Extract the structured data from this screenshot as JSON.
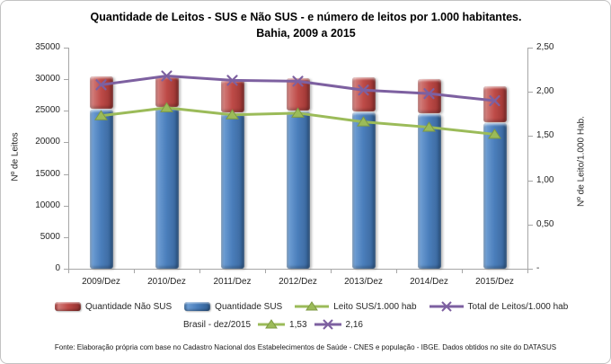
{
  "title": "Quantidade de Leitos - SUS e Não SUS - e número de leitos por 1.000 habitantes. Bahia, 2009 a 2015",
  "source_note": "Fonte: Elaboração própria com base no Cadastro Nacional dos Estabelecimentos de Saúde - CNES e população - IBGE. Dados obtidos no site do DATASUS",
  "colors": {
    "sus_bar": "#4A7EBB",
    "nao_sus_bar": "#BE4B48",
    "leito_sus_line": "#9BBB59",
    "total_leitos_line": "#7D60A0",
    "axis": "#A6A6A6",
    "text": "#262626"
  },
  "left_axis": {
    "title": "Nº de Leitos",
    "min": 0,
    "max": 35000,
    "step": 5000,
    "tick_labels": [
      "35000",
      "30000",
      "25000",
      "20000",
      "15000",
      "10000",
      "5000",
      "0"
    ]
  },
  "right_axis": {
    "title": "Nº de Leito/1.000 Hab.",
    "min": 0,
    "max": 2.5,
    "step": 0.5,
    "tick_labels": [
      "2,50",
      "2,00",
      "1,50",
      "1,00",
      "0,50",
      "-"
    ]
  },
  "legend": {
    "items": [
      {
        "label": "Quantidade Não SUS",
        "marker": "bar",
        "color": "#BE4B48"
      },
      {
        "label": "Quantidade SUS",
        "marker": "bar",
        "color": "#4A7EBB"
      },
      {
        "label": "Leito SUS/1.000 hab",
        "marker": "line-triangle",
        "color": "#9BBB59"
      },
      {
        "label": "Total de Leitos/1.000 hab",
        "marker": "line-x",
        "color": "#7D60A0"
      }
    ],
    "brasil": {
      "label": "Brasil - dez/2015",
      "sus_value": "1,53",
      "total_value": "2,16"
    }
  },
  "chart_data": {
    "type": "bar",
    "subtype": "stacked-bar-with-lines-combo",
    "categories": [
      "2009/Dez",
      "2010/Dez",
      "2011/Dez",
      "2012/Dez",
      "2013/Dez",
      "2014/Dez",
      "2015/Dez"
    ],
    "series": [
      {
        "name": "Quantidade SUS",
        "type": "bar",
        "stack": "leitos",
        "axis": "left",
        "color": "#4A7EBB",
        "values": [
          25200,
          25500,
          24600,
          24900,
          24800,
          24500,
          23100
        ]
      },
      {
        "name": "Quantidade Não SUS",
        "type": "bar",
        "stack": "leitos",
        "axis": "left",
        "color": "#BE4B48",
        "values": [
          5200,
          5000,
          5300,
          5200,
          5500,
          5500,
          5800
        ]
      },
      {
        "name": "Leito SUS/1.000 hab",
        "type": "line",
        "axis": "right",
        "marker": "triangle",
        "color": "#9BBB59",
        "values": [
          1.73,
          1.82,
          1.74,
          1.76,
          1.66,
          1.6,
          1.52
        ]
      },
      {
        "name": "Total de Leitos/1.000 hab",
        "type": "line",
        "axis": "right",
        "marker": "x",
        "color": "#7D60A0",
        "values": [
          2.08,
          2.18,
          2.13,
          2.12,
          2.02,
          1.98,
          1.9
        ]
      }
    ],
    "stacked_totals": [
      30400,
      30500,
      29900,
      30100,
      30300,
      30000,
      28900
    ],
    "title": "Quantidade de Leitos - SUS e Não SUS - e número de leitos por 1.000 habitantes. Bahia, 2009 a 2015",
    "xlabel": "",
    "ylabel_left": "Nº de Leitos",
    "ylabel_right": "Nº de Leito/1.000 Hab.",
    "left_ylim": [
      0,
      35000
    ],
    "right_ylim": [
      0,
      2.5
    ],
    "grid": false,
    "legend_position": "bottom",
    "reference": {
      "label": "Brasil - dez/2015",
      "leito_sus_per_1000": "1,53",
      "total_leitos_per_1000": "2,16"
    }
  }
}
